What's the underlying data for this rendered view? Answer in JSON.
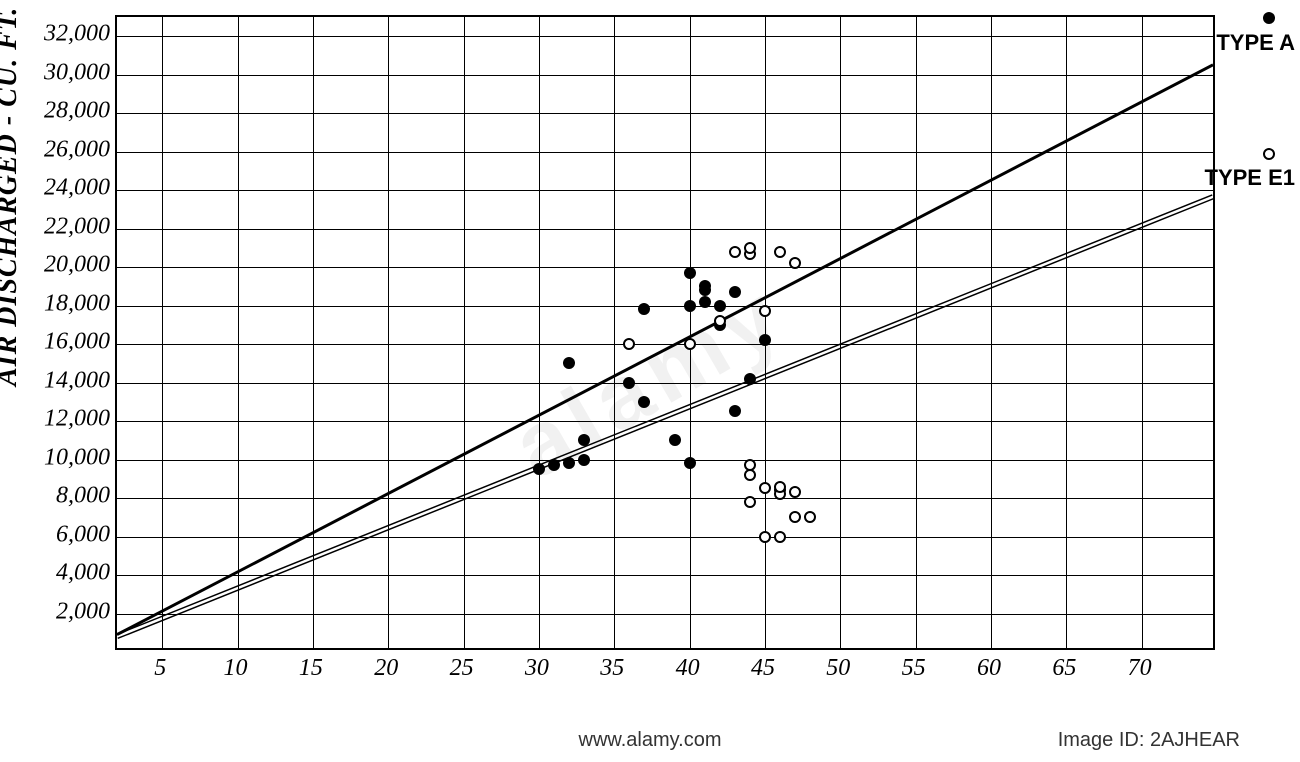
{
  "chart": {
    "type": "scatter",
    "y_axis_title": "AIR DISCHARGED - CU. FT. PER HOUR",
    "background_color": "#ffffff",
    "grid_color": "#000000",
    "border_color": "#000000",
    "xlim": [
      2,
      75
    ],
    "ylim": [
      0,
      33000
    ],
    "x_ticks": [
      5,
      10,
      15,
      20,
      25,
      30,
      35,
      40,
      45,
      50,
      55,
      60,
      65,
      70
    ],
    "y_ticks": [
      2000,
      4000,
      6000,
      8000,
      10000,
      12000,
      14000,
      16000,
      18000,
      20000,
      22000,
      24000,
      26000,
      28000,
      30000,
      32000
    ],
    "y_tick_labels": [
      "2,000",
      "4,000",
      "6,000",
      "8,000",
      "10,000",
      "12,000",
      "14,000",
      "16,000",
      "18,000",
      "20,000",
      "22,000",
      "24,000",
      "26,000",
      "28,000",
      "30,000",
      "32,000"
    ],
    "label_fontsize": 24,
    "title_fontsize": 28,
    "trend_lines": [
      {
        "name": "TYPE A",
        "label": "TYPE A",
        "color": "#000000",
        "width": 3,
        "style": "solid",
        "x1": 2,
        "y1": 700,
        "x2": 75,
        "y2": 30500
      },
      {
        "name": "TYPE E",
        "label": "TYPE E1",
        "color": "#000000",
        "width": 1,
        "style": "double",
        "x1": 2,
        "y1": 600,
        "x2": 75,
        "y2": 23600
      }
    ],
    "series": [
      {
        "name": "Type A points",
        "marker": "filled-circle",
        "marker_size": 12,
        "marker_color": "#000000",
        "points": [
          {
            "x": 30,
            "y": 9500
          },
          {
            "x": 31,
            "y": 9700
          },
          {
            "x": 32,
            "y": 9800
          },
          {
            "x": 33,
            "y": 10000
          },
          {
            "x": 33,
            "y": 11000
          },
          {
            "x": 32,
            "y": 15000
          },
          {
            "x": 36,
            "y": 14000
          },
          {
            "x": 37,
            "y": 17800
          },
          {
            "x": 37,
            "y": 13000
          },
          {
            "x": 39,
            "y": 11000
          },
          {
            "x": 40,
            "y": 9800
          },
          {
            "x": 40,
            "y": 18000
          },
          {
            "x": 40,
            "y": 19700
          },
          {
            "x": 41,
            "y": 18800
          },
          {
            "x": 41,
            "y": 18200
          },
          {
            "x": 41,
            "y": 19000
          },
          {
            "x": 42,
            "y": 18000
          },
          {
            "x": 42,
            "y": 17000
          },
          {
            "x": 43,
            "y": 18700
          },
          {
            "x": 43,
            "y": 12500
          },
          {
            "x": 44,
            "y": 14200
          },
          {
            "x": 45,
            "y": 16200
          },
          {
            "x": 46,
            "y": 8400
          }
        ]
      },
      {
        "name": "Type E points",
        "marker": "open-circle",
        "marker_size": 12,
        "marker_color": "#000000",
        "points": [
          {
            "x": 36,
            "y": 16000
          },
          {
            "x": 40,
            "y": 16000
          },
          {
            "x": 42,
            "y": 17200
          },
          {
            "x": 43,
            "y": 20800
          },
          {
            "x": 44,
            "y": 20700
          },
          {
            "x": 44,
            "y": 21000
          },
          {
            "x": 44,
            "y": 9700
          },
          {
            "x": 44,
            "y": 9200
          },
          {
            "x": 44,
            "y": 7800
          },
          {
            "x": 45,
            "y": 17700
          },
          {
            "x": 45,
            "y": 8500
          },
          {
            "x": 45,
            "y": 6000
          },
          {
            "x": 46,
            "y": 20800
          },
          {
            "x": 46,
            "y": 8200
          },
          {
            "x": 46,
            "y": 8600
          },
          {
            "x": 46,
            "y": 6000
          },
          {
            "x": 47,
            "y": 20200
          },
          {
            "x": 47,
            "y": 8300
          },
          {
            "x": 47,
            "y": 7000
          },
          {
            "x": 48,
            "y": 7000
          }
        ]
      }
    ]
  },
  "watermark": {
    "text": "alamy",
    "color": "rgba(200,200,200,0.25)"
  },
  "footer": {
    "site": "www.alamy.com",
    "id": "Image ID: 2AJHEAR"
  }
}
